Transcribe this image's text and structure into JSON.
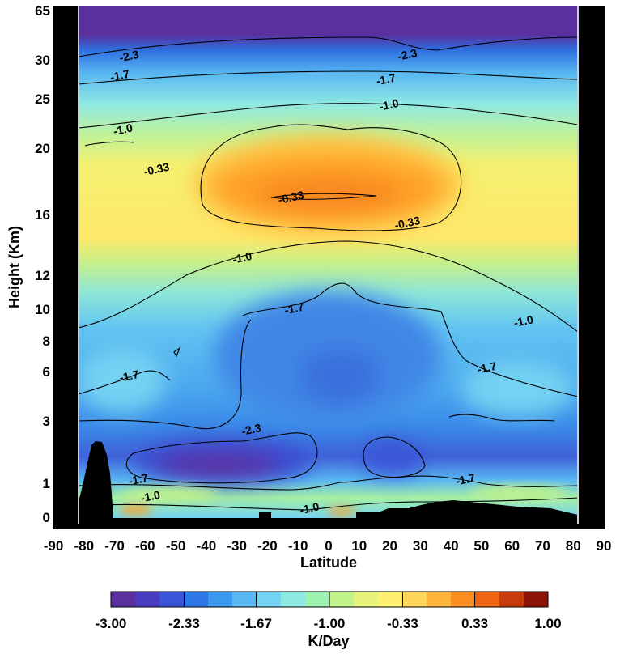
{
  "chart_data": {
    "type": "heatmap",
    "title": "",
    "xlabel": "Latitude",
    "ylabel": "Height (Km)",
    "xlim": [
      -90,
      90
    ],
    "x_ticks": [
      "-90",
      "-80",
      "-70",
      "-60",
      "-50",
      "-40",
      "-30",
      "-20",
      "-10",
      "0",
      "10",
      "20",
      "30",
      "40",
      "50",
      "60",
      "70",
      "80",
      "90"
    ],
    "y_ticks": [
      "0",
      "1",
      "3",
      "6",
      "8",
      "10",
      "12",
      "16",
      "20",
      "25",
      "30",
      "65"
    ],
    "colorbar": {
      "label": "K/Day",
      "range": [
        -3.0,
        1.0
      ],
      "tick_labels": [
        "-3.00",
        "-2.33",
        "-1.67",
        "-1.00",
        "-0.33",
        "0.33",
        "1.00"
      ],
      "colors": [
        "#5a2f9e",
        "#4a3cc0",
        "#3a55d8",
        "#2e78ea",
        "#3a98ee",
        "#58b6f2",
        "#74d2f2",
        "#8ee8e2",
        "#9ef2b0",
        "#c2f28a",
        "#e6f27a",
        "#fff070",
        "#ffd65a",
        "#ffb43c",
        "#fc8c1e",
        "#f06414",
        "#c83c0c",
        "#8c1408"
      ]
    },
    "contour_labels": [
      {
        "text": "-2.3",
        "lat": -65,
        "km": 30
      },
      {
        "text": "-2.3",
        "lat": 26,
        "km": 31
      },
      {
        "text": "-1.7",
        "lat": -68,
        "km": 27.5
      },
      {
        "text": "-1.7",
        "lat": 19,
        "km": 27
      },
      {
        "text": "-1.0",
        "lat": -67,
        "km": 21.5
      },
      {
        "text": "-1.0",
        "lat": 20,
        "km": 24
      },
      {
        "text": "-0.33",
        "lat": -56,
        "km": 18.5
      },
      {
        "text": "-0.33",
        "lat": -12,
        "km": 16.8
      },
      {
        "text": "-0.33",
        "lat": 26,
        "km": 15.2
      },
      {
        "text": "-1.0",
        "lat": -28,
        "km": 12.9
      },
      {
        "text": "-1.7",
        "lat": -11,
        "km": 9.8
      },
      {
        "text": "-1.0",
        "lat": 64,
        "km": 9.0
      },
      {
        "text": "-1.7",
        "lat": -65,
        "km": 5.5
      },
      {
        "text": "-1.7",
        "lat": 52,
        "km": 6.0
      },
      {
        "text": "-2.3",
        "lat": -25,
        "km": 2.6
      },
      {
        "text": "-1.7",
        "lat": -62,
        "km": 1.0
      },
      {
        "text": "-1.7",
        "lat": 45,
        "km": 1.0
      },
      {
        "text": "-1.0",
        "lat": -58,
        "km": 0.5
      },
      {
        "text": "-1.0",
        "lat": -6,
        "km": 0.15
      }
    ]
  }
}
